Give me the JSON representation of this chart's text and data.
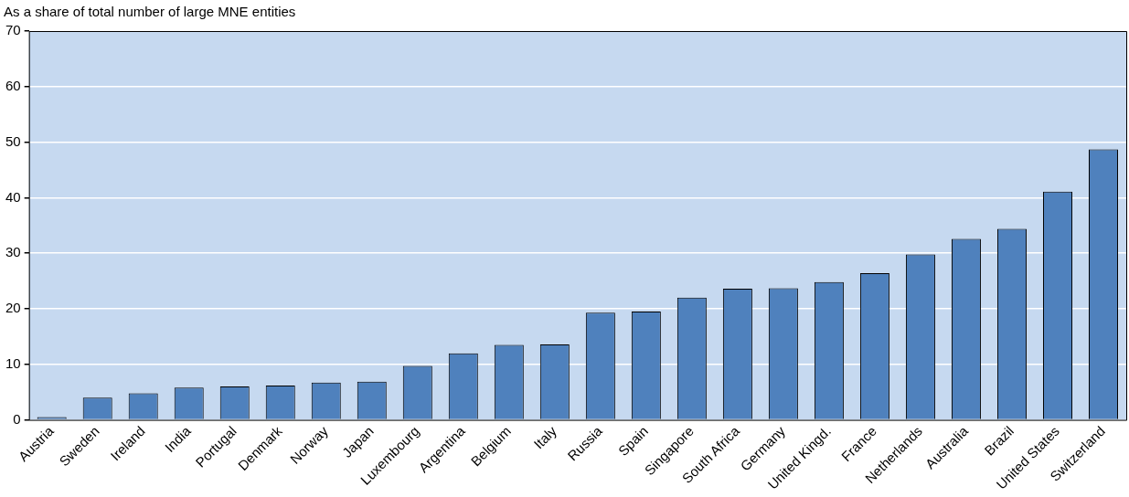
{
  "chart_data": {
    "type": "bar",
    "ylabel": "As a share of total number of large MNE entities",
    "categories": [
      "Austria",
      "Sweden",
      "Ireland",
      "India",
      "Portugal",
      "Denmark",
      "Norway",
      "Japan",
      "Luxembourg",
      "Argentina",
      "Belgium",
      "Italy",
      "Russia",
      "Spain",
      "Singapore",
      "South Africa",
      "Germany",
      "United Kingd.",
      "France",
      "Netherlands",
      "Australia",
      "Brazil",
      "United States",
      "Switzerland"
    ],
    "values": [
      0.5,
      4.0,
      4.8,
      5.8,
      6.0,
      6.2,
      6.7,
      6.9,
      9.7,
      12.0,
      13.5,
      13.6,
      19.3,
      19.5,
      22.0,
      23.6,
      23.7,
      24.8,
      26.4,
      29.8,
      32.6,
      34.4,
      41.1,
      48.7
    ],
    "color": "#4f81bd",
    "ylim": [
      0,
      70
    ],
    "yticks": [
      0,
      10,
      20,
      30,
      40,
      50,
      60,
      70
    ],
    "grid": "y",
    "legend": false
  }
}
